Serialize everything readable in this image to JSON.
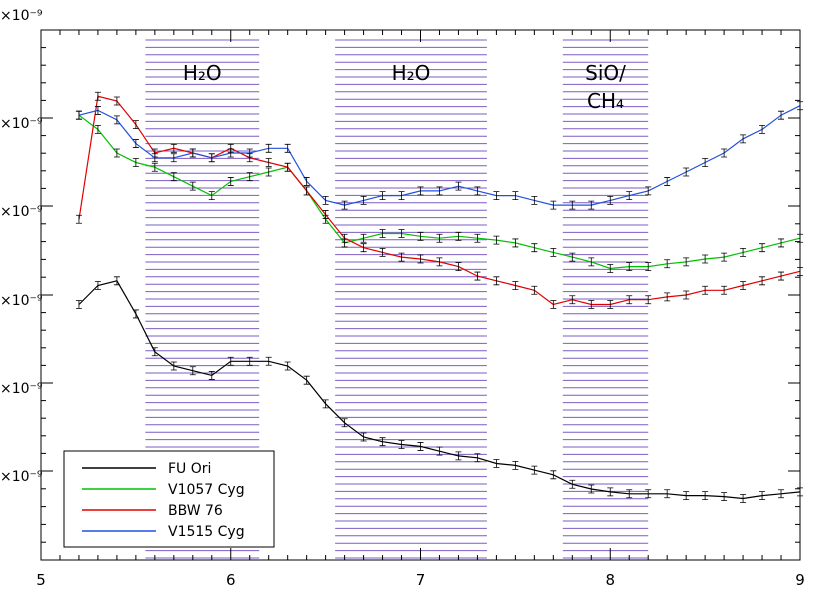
{
  "chart_data": {
    "type": "line",
    "title": "",
    "xlabel": "",
    "ylabel": "",
    "xlim": [
      5,
      9
    ],
    "x_ticks": [
      "5",
      "6",
      "7",
      "8",
      "9"
    ],
    "y_ticks": [
      "×10⁻⁹",
      "×10⁻⁹",
      "×10⁻⁹",
      "×10⁻⁹",
      "×10⁻⁹",
      "×10⁻⁹"
    ],
    "grid": false,
    "legend": "bottom-left",
    "bands": [
      {
        "x0": 5.55,
        "x1": 6.15,
        "label": "H₂O"
      },
      {
        "x0": 6.55,
        "x1": 7.35,
        "label": "H₂O"
      },
      {
        "x0": 7.75,
        "x1": 8.2,
        "label": "SiO/ CH₄"
      }
    ],
    "x": [
      5.2,
      5.3,
      5.4,
      5.5,
      5.6,
      5.7,
      5.8,
      5.9,
      6.0,
      6.1,
      6.2,
      6.3,
      6.4,
      6.5,
      6.6,
      6.7,
      6.8,
      6.9,
      7.0,
      7.1,
      7.2,
      7.3,
      7.4,
      7.5,
      7.6,
      7.7,
      7.8,
      7.9,
      8.0,
      8.1,
      8.2,
      8.3,
      8.4,
      8.5,
      8.6,
      8.7,
      8.8,
      8.9,
      9.0
    ],
    "series": [
      {
        "name": "FU Ori",
        "color": "#000000",
        "values": [
          3.9,
          4.1,
          4.15,
          3.8,
          3.4,
          3.25,
          3.2,
          3.15,
          3.3,
          3.3,
          3.3,
          3.25,
          3.1,
          2.85,
          2.65,
          2.5,
          2.45,
          2.42,
          2.4,
          2.35,
          2.3,
          2.28,
          2.22,
          2.2,
          2.15,
          2.1,
          2.0,
          1.95,
          1.92,
          1.9,
          1.9,
          1.9,
          1.88,
          1.88,
          1.87,
          1.85,
          1.88,
          1.9,
          1.92
        ]
      },
      {
        "name": "V1057 Cyg",
        "color": "#00c000",
        "values": [
          5.9,
          5.75,
          5.5,
          5.4,
          5.35,
          5.25,
          5.15,
          5.05,
          5.2,
          5.25,
          5.3,
          5.35,
          5.1,
          4.8,
          4.55,
          4.6,
          4.65,
          4.65,
          4.62,
          4.6,
          4.62,
          4.6,
          4.58,
          4.55,
          4.5,
          4.45,
          4.4,
          4.35,
          4.28,
          4.3,
          4.3,
          4.33,
          4.35,
          4.38,
          4.4,
          4.45,
          4.5,
          4.55,
          4.6
        ]
      },
      {
        "name": "BBW 76",
        "color": "#e00000",
        "values": [
          4.8,
          6.1,
          6.05,
          5.8,
          5.5,
          5.55,
          5.5,
          5.45,
          5.55,
          5.45,
          5.4,
          5.35,
          5.1,
          4.85,
          4.6,
          4.5,
          4.45,
          4.4,
          4.38,
          4.35,
          4.3,
          4.2,
          4.15,
          4.1,
          4.05,
          3.9,
          3.95,
          3.9,
          3.9,
          3.95,
          3.95,
          3.98,
          4.0,
          4.05,
          4.05,
          4.1,
          4.15,
          4.2,
          4.25
        ]
      },
      {
        "name": "V1515 Cyg",
        "color": "#2050e0",
        "values": [
          5.9,
          5.95,
          5.85,
          5.6,
          5.45,
          5.45,
          5.5,
          5.45,
          5.5,
          5.5,
          5.55,
          5.55,
          5.2,
          5.0,
          4.95,
          5.0,
          5.05,
          5.05,
          5.1,
          5.1,
          5.15,
          5.1,
          5.05,
          5.05,
          5.0,
          4.95,
          4.95,
          4.95,
          5.0,
          5.05,
          5.1,
          5.2,
          5.3,
          5.4,
          5.5,
          5.65,
          5.75,
          5.9,
          6.0
        ]
      }
    ]
  }
}
